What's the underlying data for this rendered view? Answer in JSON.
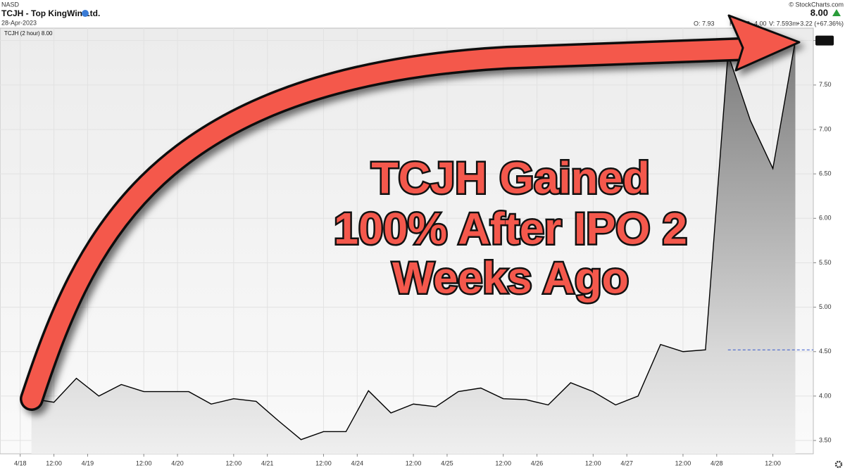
{
  "header": {
    "exchange": "NASD",
    "title": "TCJH - Top KingWin Ltd.",
    "date": "28-Apr-2023",
    "copyright": "© StockCharts.com",
    "last": "8.00",
    "stats": [
      "O: 7.93",
      "H: 9.12",
      "4.00",
      "V: 7.593m"
    ],
    "change": "+3.22 (+67.36%)"
  },
  "chart_data": {
    "type": "area",
    "annotations": [
      "TCJH Gained",
      "100% After IPO 2",
      "Weeks Ago"
    ],
    "x": [
      0,
      1,
      2,
      3,
      4,
      5,
      6,
      7,
      8,
      9,
      10,
      11,
      12,
      13,
      14,
      15,
      16,
      17,
      18,
      19,
      20,
      21,
      22,
      23,
      24,
      25,
      26,
      27,
      28,
      29,
      30,
      31,
      32,
      33,
      34
    ],
    "series": [
      {
        "name": "TCJH (2 hour) 8.00",
        "color": "#000000",
        "values": [
          3.97,
          3.93,
          4.2,
          4.0,
          4.13,
          4.05,
          4.05,
          4.05,
          3.91,
          3.97,
          3.94,
          3.72,
          3.51,
          3.6,
          3.6,
          4.06,
          3.81,
          3.91,
          3.88,
          4.05,
          4.09,
          3.97,
          3.96,
          3.9,
          4.15,
          4.05,
          3.9,
          4.0,
          4.58,
          4.5,
          4.52,
          7.85,
          7.1,
          6.56,
          8.0
        ]
      }
    ],
    "reference_line": {
      "value": 4.52,
      "color": "#3355cc"
    },
    "xlim": [
      -1.4,
      34.8
    ],
    "xticks": [
      {
        "value": -0.5,
        "label": "4/18"
      },
      {
        "value": 1,
        "label": "12:00"
      },
      {
        "value": 2.5,
        "label": "4/19"
      },
      {
        "value": 5,
        "label": "12:00"
      },
      {
        "value": 6.5,
        "label": "4/20"
      },
      {
        "value": 9,
        "label": "12:00"
      },
      {
        "value": 10.5,
        "label": "4/21"
      },
      {
        "value": 13,
        "label": "12:00"
      },
      {
        "value": 14.5,
        "label": "4/24"
      },
      {
        "value": 17,
        "label": "12:00"
      },
      {
        "value": 18.5,
        "label": "4/25"
      },
      {
        "value": 21,
        "label": "12:00"
      },
      {
        "value": 22.5,
        "label": "4/26"
      },
      {
        "value": 25,
        "label": "12:00"
      },
      {
        "value": 26.5,
        "label": "4/27"
      },
      {
        "value": 29,
        "label": "12:00"
      },
      {
        "value": 30.5,
        "label": "4/28"
      },
      {
        "value": 33,
        "label": "12:00"
      }
    ],
    "ylim": [
      3.35,
      8.14
    ],
    "yticks": [
      {
        "value": 3.5,
        "label": "3.50"
      },
      {
        "value": 4,
        "label": "4.00"
      },
      {
        "value": 4.5,
        "label": "4.50"
      },
      {
        "value": 5,
        "label": "5.00"
      },
      {
        "value": 5.5,
        "label": "5.50"
      },
      {
        "value": 6,
        "label": "6.00"
      },
      {
        "value": 6.5,
        "label": "6.50"
      },
      {
        "value": 7,
        "label": "7.00"
      },
      {
        "value": 7.5,
        "label": "7.50"
      },
      {
        "value": 8,
        "label": "8.00"
      }
    ],
    "grid": true
  }
}
